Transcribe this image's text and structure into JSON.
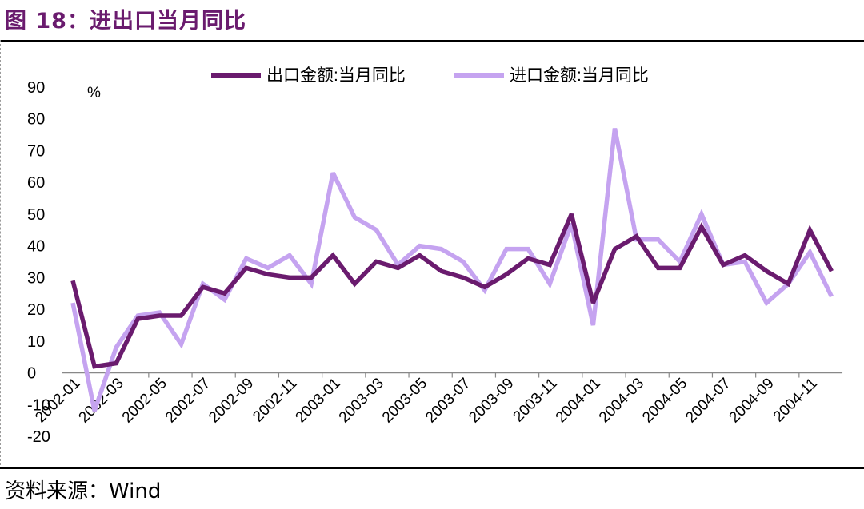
{
  "figure": {
    "title": "图 18：进出口当月同比",
    "source": "资料来源：Wind"
  },
  "colors": {
    "title": "#6a1b6e",
    "export": "#6a1b6e",
    "import": "#c5a3f0",
    "axis": "#888888"
  },
  "chart_data": {
    "type": "line",
    "title": "",
    "xlabel": "",
    "ylabel": "%",
    "ylim": [
      -20,
      90
    ],
    "yticks": [
      -20,
      -10,
      0,
      10,
      20,
      30,
      40,
      50,
      60,
      70,
      80,
      90
    ],
    "grid": false,
    "legend_position": "top",
    "x": [
      "2002-01",
      "2002-02",
      "2002-03",
      "2002-04",
      "2002-05",
      "2002-06",
      "2002-07",
      "2002-08",
      "2002-09",
      "2002-10",
      "2002-11",
      "2002-12",
      "2003-01",
      "2003-02",
      "2003-03",
      "2003-04",
      "2003-05",
      "2003-06",
      "2003-07",
      "2003-08",
      "2003-09",
      "2003-10",
      "2003-11",
      "2003-12",
      "2004-01",
      "2004-02",
      "2004-03",
      "2004-04",
      "2004-05",
      "2004-06",
      "2004-07",
      "2004-08",
      "2004-09",
      "2004-10",
      "2004-11",
      "2004-12"
    ],
    "xtick_labels": [
      "2002-01",
      "2002-03",
      "2002-05",
      "2002-07",
      "2002-09",
      "2002-11",
      "2003-01",
      "2003-03",
      "2003-05",
      "2003-07",
      "2003-09",
      "2003-11",
      "2004-01",
      "2004-03",
      "2004-05",
      "2004-07",
      "2004-09",
      "2004-11"
    ],
    "series": [
      {
        "name": "出口金额:当月同比",
        "values": [
          29,
          2,
          3,
          17,
          18,
          18,
          27,
          25,
          33,
          31,
          30,
          30,
          37,
          28,
          35,
          33,
          37,
          32,
          30,
          27,
          31,
          36,
          34,
          50,
          22,
          39,
          43,
          33,
          33,
          46,
          34,
          37,
          32,
          28,
          45,
          32
        ]
      },
      {
        "name": "进口金额:当月同比",
        "values": [
          22,
          -12,
          8,
          18,
          19,
          9,
          28,
          23,
          36,
          33,
          37,
          28,
          63,
          49,
          45,
          34,
          40,
          39,
          35,
          26,
          39,
          39,
          28,
          47,
          15,
          77,
          42,
          42,
          35,
          50,
          34,
          35,
          22,
          28,
          38,
          24
        ]
      }
    ]
  }
}
